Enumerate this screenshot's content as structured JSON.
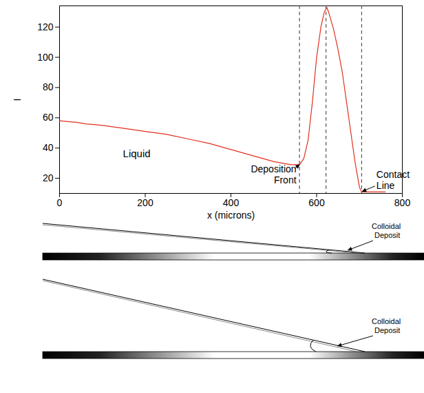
{
  "chart_data": {
    "type": "line",
    "x": [
      0,
      20,
      40,
      60,
      80,
      100,
      150,
      200,
      250,
      300,
      350,
      400,
      450,
      500,
      540,
      560,
      570,
      580,
      590,
      600,
      610,
      618,
      624,
      630,
      640,
      650,
      660,
      670,
      680,
      690,
      700,
      705,
      720,
      760
    ],
    "values": [
      58,
      57.5,
      57,
      56,
      55.5,
      55,
      53,
      51,
      49,
      46,
      43,
      39,
      35,
      31,
      29,
      29,
      33,
      45,
      70,
      100,
      120,
      130,
      133,
      128,
      118,
      105,
      90,
      70,
      50,
      30,
      14,
      11,
      11,
      11
    ],
    "color": "#e0301e",
    "xlim": [
      0,
      800
    ],
    "ylim": [
      10,
      134
    ],
    "xticks": [
      0,
      200,
      400,
      600,
      800
    ],
    "yticks": [
      20,
      40,
      60,
      80,
      100,
      120
    ],
    "xlabel": "x (microns)",
    "ylabel": "I",
    "reference_lines": [
      560,
      622,
      705
    ],
    "labels": [
      {
        "text": "Liquid",
        "x": 180,
        "y": 36
      }
    ],
    "annotations": [
      {
        "text": "Deposition Front",
        "x": 560,
        "y": 29
      },
      {
        "text": "Contact Line",
        "x": 705,
        "y": 11
      }
    ]
  },
  "diagrams": [
    {
      "label": "Colloidal Deposit"
    },
    {
      "label": "Colloidal Deposit"
    }
  ]
}
